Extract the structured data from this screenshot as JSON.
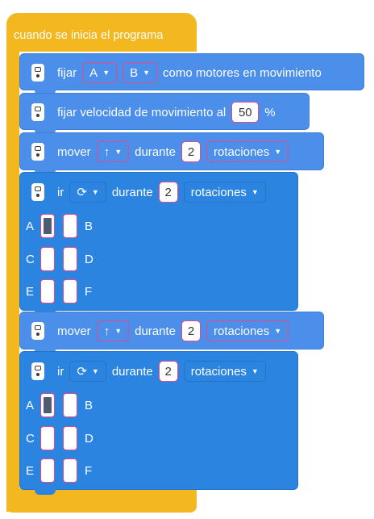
{
  "hat": {
    "label": "cuando se inicia el programa"
  },
  "b1": {
    "text1": "fijar",
    "dd1": "A",
    "dd2": "B",
    "text2": "como motores en movimiento"
  },
  "b2": {
    "text1": "fijar velocidad de movimiento al",
    "value": "50",
    "unit": "%"
  },
  "b3": {
    "text1": "mover",
    "dir": "↑",
    "text2": "durante",
    "value": "2",
    "unit": "rotaciones"
  },
  "b4": {
    "text1": "ir",
    "dir": "⟳",
    "text2": "durante",
    "value": "2",
    "unit": "rotaciones",
    "labels": [
      "A",
      "B",
      "C",
      "D",
      "E",
      "F"
    ],
    "active": [
      true,
      false,
      false,
      false,
      false,
      false
    ]
  },
  "b5": {
    "text1": "mover",
    "dir": "↑",
    "text2": "durante",
    "value": "2",
    "unit": "rotaciones"
  },
  "b6": {
    "text1": "ir",
    "dir": "⟳",
    "text2": "durante",
    "value": "2",
    "unit": "rotaciones",
    "labels": [
      "A",
      "B",
      "C",
      "D",
      "E",
      "F"
    ],
    "active": [
      true,
      false,
      false,
      false,
      false,
      false
    ]
  }
}
